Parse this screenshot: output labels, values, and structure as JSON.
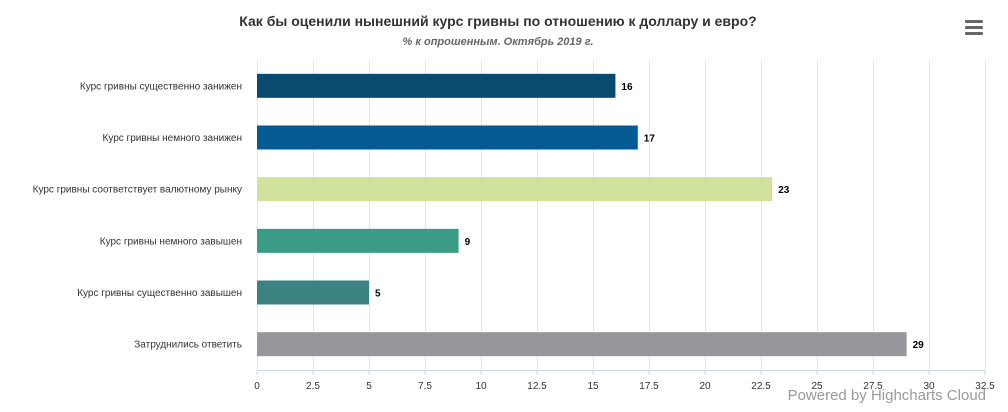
{
  "chart_data": {
    "type": "bar",
    "orientation": "horizontal",
    "title": "Как бы оценили нынешний курс гривны по отношению к доллару и евро?",
    "subtitle": "% к опрошенным. Октябрь 2019 г.",
    "categories": [
      "Курс гривны существенно занижен",
      "Курс гривны немного занижен",
      "Курс гривны соответствует валютному рынку",
      "Курс гривны немного завышен",
      "Курс гривны существенно завышен",
      "Затруднились ответить"
    ],
    "values": [
      16,
      17,
      23,
      9,
      5,
      29
    ],
    "data_labels": [
      "16",
      "17",
      "23",
      "9",
      "5",
      "29"
    ],
    "colors": [
      "#0b4a6f",
      "#055a93",
      "#d1e29c",
      "#3b9c86",
      "#3b8280",
      "#96979b"
    ],
    "xlim": [
      0,
      32.5
    ],
    "ticks": [
      "0",
      "2.5",
      "5",
      "7.5",
      "10",
      "12.5",
      "15",
      "17.5",
      "20",
      "22.5",
      "25",
      "27.5",
      "30",
      "32.5"
    ],
    "tick_values": [
      0,
      2.5,
      5,
      7.5,
      10,
      12.5,
      15,
      17.5,
      20,
      22.5,
      25,
      27.5,
      30,
      32.5
    ],
    "xlabel": "",
    "ylabel": "",
    "grid": true,
    "legend": "none"
  },
  "credits": "Powered by Highcharts Cloud",
  "menu_icon": "hamburger-menu-icon"
}
